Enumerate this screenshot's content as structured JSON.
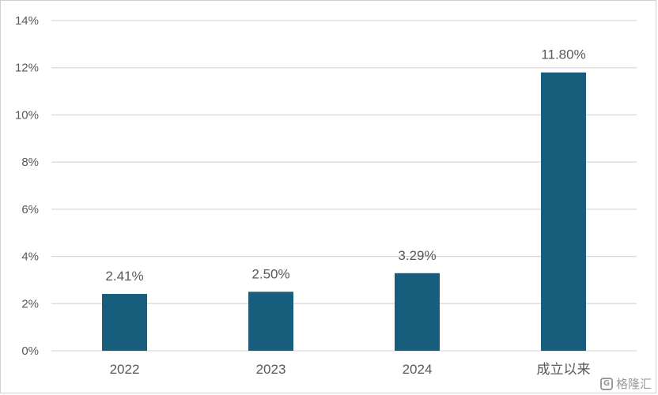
{
  "chart_data": {
    "type": "bar",
    "categories": [
      "2022",
      "2023",
      "2024",
      "成立以来"
    ],
    "values": [
      2.41,
      2.5,
      3.29,
      11.8
    ],
    "data_labels": [
      "2.41%",
      "2.50%",
      "3.29%",
      "11.80%"
    ],
    "title": "",
    "xlabel": "",
    "ylabel": "",
    "ylim": [
      0,
      14
    ],
    "y_ticks": [
      0,
      2,
      4,
      6,
      8,
      10,
      12,
      14
    ],
    "y_tick_labels": [
      "0%",
      "2%",
      "4%",
      "6%",
      "8%",
      "10%",
      "12%",
      "14%"
    ],
    "grid": true,
    "legend": "none",
    "bar_color": "#175E7C",
    "grid_color": "#d9d9d9"
  },
  "watermark": {
    "text": "格隆汇"
  }
}
